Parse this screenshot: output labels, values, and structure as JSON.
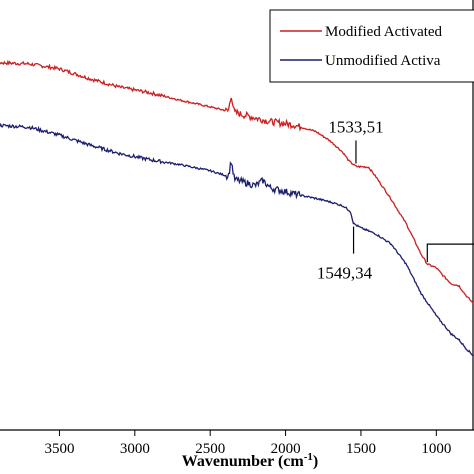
{
  "chart_data": {
    "type": "line",
    "xlabel": "Wavenumber (cm",
    "xlabel_sup": "-1",
    "xlabel_close": ")",
    "xlim": [
      4100,
      750
    ],
    "xticks": [
      3500,
      3000,
      2500,
      2000,
      1500,
      1000
    ],
    "x_reversed": true,
    "legend_position": "top-right",
    "colors": {
      "modified": "#cc1f1f",
      "unmodified": "#1c1f6e",
      "axis": "#000000"
    },
    "series": [
      {
        "name": "Modified Activated",
        "key": "modified",
        "points": [
          [
            4100,
            70.0
          ],
          [
            3900,
            69.8
          ],
          [
            3700,
            69.6
          ],
          [
            3500,
            68.8
          ],
          [
            3300,
            67.2
          ],
          [
            3100,
            65.8
          ],
          [
            2900,
            64.9
          ],
          [
            2700,
            63.7
          ],
          [
            2500,
            62.6
          ],
          [
            2380,
            61.9
          ],
          [
            2360,
            64.5
          ],
          [
            2340,
            61.7
          ],
          [
            2200,
            60.8
          ],
          [
            2100,
            60.2
          ],
          [
            1950,
            59.7
          ],
          [
            1800,
            58.6
          ],
          [
            1700,
            57.0
          ],
          [
            1620,
            55.2
          ],
          [
            1580,
            53.8
          ],
          [
            1533,
            52.9
          ],
          [
            1450,
            52.8
          ],
          [
            1400,
            51.2
          ],
          [
            1300,
            47.6
          ],
          [
            1200,
            43.6
          ],
          [
            1100,
            38.6
          ],
          [
            1060,
            37.0
          ],
          [
            1000,
            36.4
          ],
          [
            950,
            35.0
          ],
          [
            900,
            33.8
          ],
          [
            850,
            33.5
          ],
          [
            800,
            31.8
          ],
          [
            750,
            30.5
          ]
        ]
      },
      {
        "name": "Unmodified Activa",
        "key": "unmodified",
        "points": [
          [
            4100,
            60.0
          ],
          [
            3900,
            59.6
          ],
          [
            3700,
            59.3
          ],
          [
            3500,
            58.0
          ],
          [
            3300,
            56.4
          ],
          [
            3100,
            55.0
          ],
          [
            2900,
            54.0
          ],
          [
            2700,
            53.2
          ],
          [
            2500,
            52.2
          ],
          [
            2380,
            51.3
          ],
          [
            2360,
            53.8
          ],
          [
            2340,
            50.8
          ],
          [
            2200,
            49.8
          ],
          [
            2150,
            50.6
          ],
          [
            2100,
            49.4
          ],
          [
            2000,
            48.8
          ],
          [
            1900,
            48.2
          ],
          [
            1800,
            47.7
          ],
          [
            1700,
            47.1
          ],
          [
            1620,
            46.5
          ],
          [
            1570,
            45.6
          ],
          [
            1549,
            43.6
          ],
          [
            1500,
            42.9
          ],
          [
            1400,
            41.9
          ],
          [
            1300,
            40.3
          ],
          [
            1200,
            37.0
          ],
          [
            1100,
            32.2
          ],
          [
            1000,
            28.6
          ],
          [
            900,
            25.6
          ],
          [
            850,
            24.7
          ],
          [
            800,
            23.2
          ],
          [
            750,
            22.0
          ]
        ]
      }
    ],
    "annotations": [
      {
        "text": "1533,51",
        "x": 1533,
        "series": "modified",
        "side": "above"
      },
      {
        "text": "1549,34",
        "x": 1549,
        "series": "unmodified",
        "side": "below"
      }
    ]
  }
}
